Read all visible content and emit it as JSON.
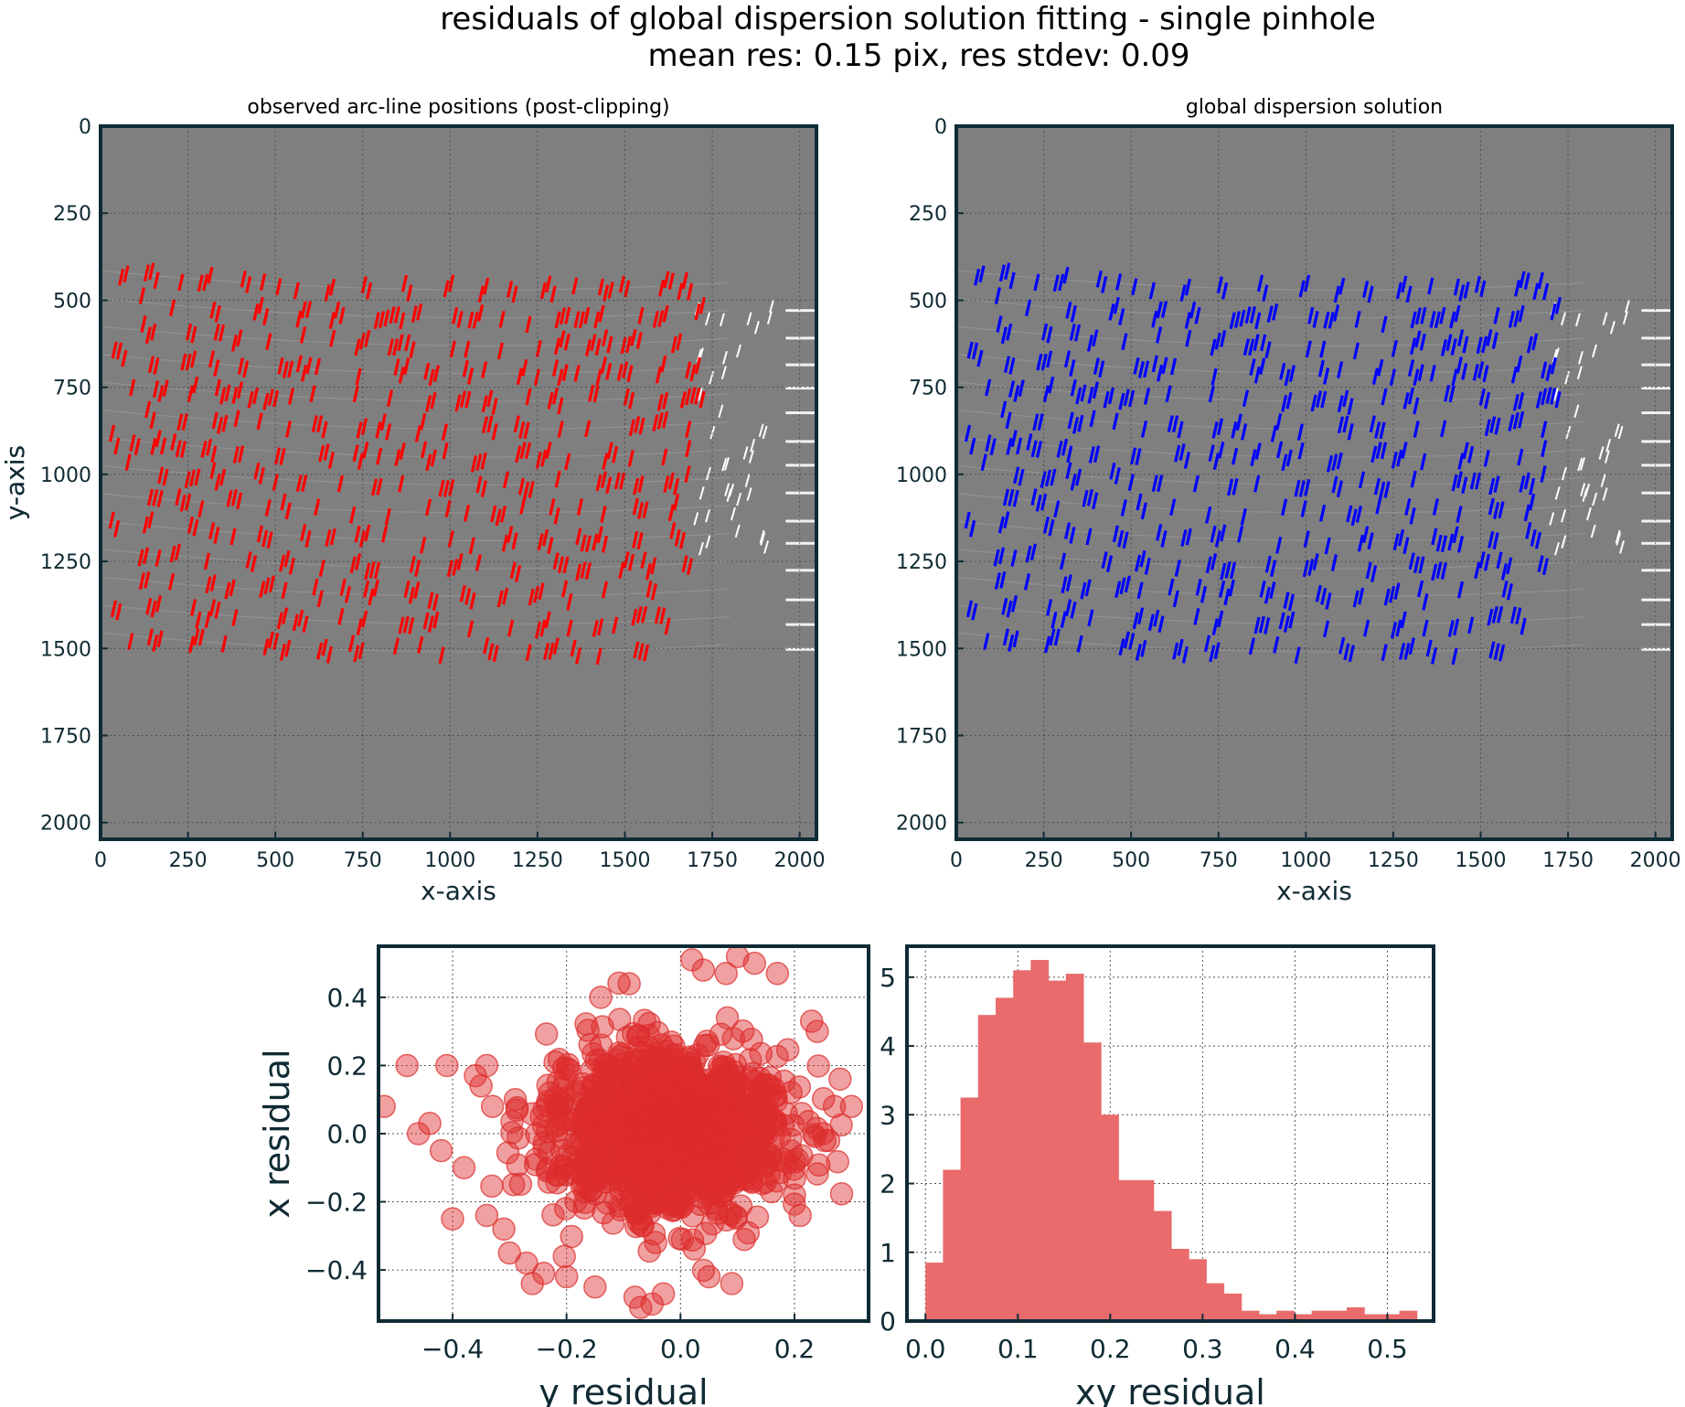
{
  "figure": {
    "title": "residuals of global dispersion solution fitting - single pinhole",
    "subtitle": "mean res: 0.15 pix, res stdev: 0.09"
  },
  "colors": {
    "frame": "#0f2b35",
    "image_background": "#7f7f7f",
    "observed_marks": "#ff0000",
    "solution_marks": "#0000ff",
    "arc_lines": "#ffffff",
    "scatter_fill": "#dd2c2c",
    "histogram_fill": "#e96b6b"
  },
  "chart_data": [
    {
      "type": "scatter",
      "title": "observed arc-line positions (post-clipping)",
      "xlabel": "x-axis",
      "ylabel": "y-axis",
      "xlim": [
        0,
        2048
      ],
      "ylim": [
        2048,
        0
      ],
      "xticks": [
        0,
        250,
        500,
        750,
        1000,
        1250,
        1500,
        1750,
        2000
      ],
      "yticks": [
        0,
        250,
        500,
        750,
        1000,
        1250,
        1500,
        1750,
        2000
      ],
      "grid": true,
      "background": "arc lamp frame image (grayscale)",
      "marker": "short red line segments"
    },
    {
      "type": "scatter",
      "title": "global dispersion solution",
      "xlabel": "x-axis",
      "ylabel": "y-axis",
      "xlim": [
        0,
        2048
      ],
      "ylim": [
        2048,
        0
      ],
      "xticks": [
        0,
        250,
        500,
        750,
        1000,
        1250,
        1500,
        1750,
        2000
      ],
      "yticks": [
        0,
        250,
        500,
        750,
        1000,
        1250,
        1500,
        1750,
        2000
      ],
      "grid": true,
      "background": "arc lamp frame image (grayscale)",
      "marker": "short blue line segments"
    },
    {
      "type": "scatter",
      "title": "",
      "xlabel": "y residual",
      "ylabel": "x residual",
      "xlim": [
        -0.53,
        0.33
      ],
      "ylim": [
        -0.55,
        0.55
      ],
      "xticks": [
        -0.4,
        -0.2,
        0.0,
        0.2
      ],
      "yticks": [
        -0.4,
        -0.2,
        0.0,
        0.2,
        0.4
      ],
      "xtick_labels": [
        "−0.4",
        "−0.2",
        "0.0",
        "0.2"
      ],
      "ytick_labels": [
        "−0.4",
        "−0.2",
        "0.0",
        "0.2",
        "0.4"
      ],
      "grid": true,
      "distribution": {
        "center_y_residual": -0.02,
        "center_x_residual": 0.0,
        "spread_y": 0.1,
        "spread_x": 0.12
      },
      "outliers": [
        [
          -0.48,
          0.2
        ],
        [
          -0.41,
          0.2
        ],
        [
          -0.36,
          0.17
        ],
        [
          -0.35,
          0.14
        ],
        [
          -0.34,
          0.2
        ],
        [
          -0.52,
          0.08
        ],
        [
          -0.46,
          0.0
        ],
        [
          -0.44,
          0.03
        ],
        [
          -0.42,
          -0.05
        ],
        [
          -0.38,
          -0.1
        ],
        [
          -0.4,
          -0.25
        ],
        [
          -0.34,
          -0.24
        ],
        [
          -0.31,
          -0.28
        ],
        [
          -0.3,
          -0.35
        ],
        [
          -0.27,
          -0.38
        ],
        [
          -0.26,
          -0.44
        ],
        [
          -0.24,
          -0.41
        ],
        [
          -0.33,
          0.08
        ],
        [
          -0.29,
          0.1
        ],
        [
          -0.22,
          0.21
        ],
        [
          -0.2,
          -0.42
        ],
        [
          -0.15,
          -0.45
        ],
        [
          -0.08,
          -0.48
        ],
        [
          -0.05,
          -0.5
        ],
        [
          -0.03,
          -0.47
        ],
        [
          -0.07,
          -0.51
        ],
        [
          0.05,
          -0.42
        ],
        [
          0.09,
          -0.44
        ],
        [
          0.04,
          0.48
        ],
        [
          0.08,
          0.47
        ],
        [
          0.1,
          0.52
        ],
        [
          0.13,
          0.5
        ],
        [
          0.17,
          0.47
        ],
        [
          0.02,
          0.51
        ],
        [
          0.23,
          0.33
        ],
        [
          0.24,
          0.3
        ],
        [
          0.28,
          0.16
        ],
        [
          0.27,
          0.08
        ],
        [
          0.3,
          0.08
        ],
        [
          0.26,
          -0.02
        ],
        [
          0.25,
          0.0
        ],
        [
          -0.09,
          0.44
        ],
        [
          -0.14,
          0.4
        ],
        [
          0.21,
          -0.24
        ],
        [
          0.2,
          -0.18
        ]
      ]
    },
    {
      "type": "bar",
      "title": "",
      "xlabel": "xy residual",
      "ylabel": "",
      "xlim": [
        -0.02,
        0.55
      ],
      "ylim": [
        0,
        5.45
      ],
      "xticks": [
        0.0,
        0.1,
        0.2,
        0.3,
        0.4,
        0.5
      ],
      "yticks": [
        0,
        1,
        2,
        3,
        4,
        5
      ],
      "grid": true,
      "bin_edges": [
        0.0,
        0.019,
        0.038,
        0.057,
        0.076,
        0.095,
        0.114,
        0.133,
        0.152,
        0.171,
        0.19,
        0.209,
        0.228,
        0.247,
        0.266,
        0.285,
        0.304,
        0.323,
        0.342,
        0.361,
        0.38,
        0.399,
        0.418,
        0.437,
        0.456,
        0.475,
        0.494,
        0.513
      ],
      "values": [
        0.85,
        2.2,
        3.25,
        4.45,
        4.7,
        5.1,
        5.25,
        4.95,
        5.05,
        4.05,
        3.0,
        2.05,
        2.05,
        1.6,
        1.05,
        0.9,
        0.55,
        0.4,
        0.15,
        0.1,
        0.15,
        0.1,
        0.15,
        0.15,
        0.2,
        0.1,
        0.1,
        0.15
      ]
    }
  ]
}
